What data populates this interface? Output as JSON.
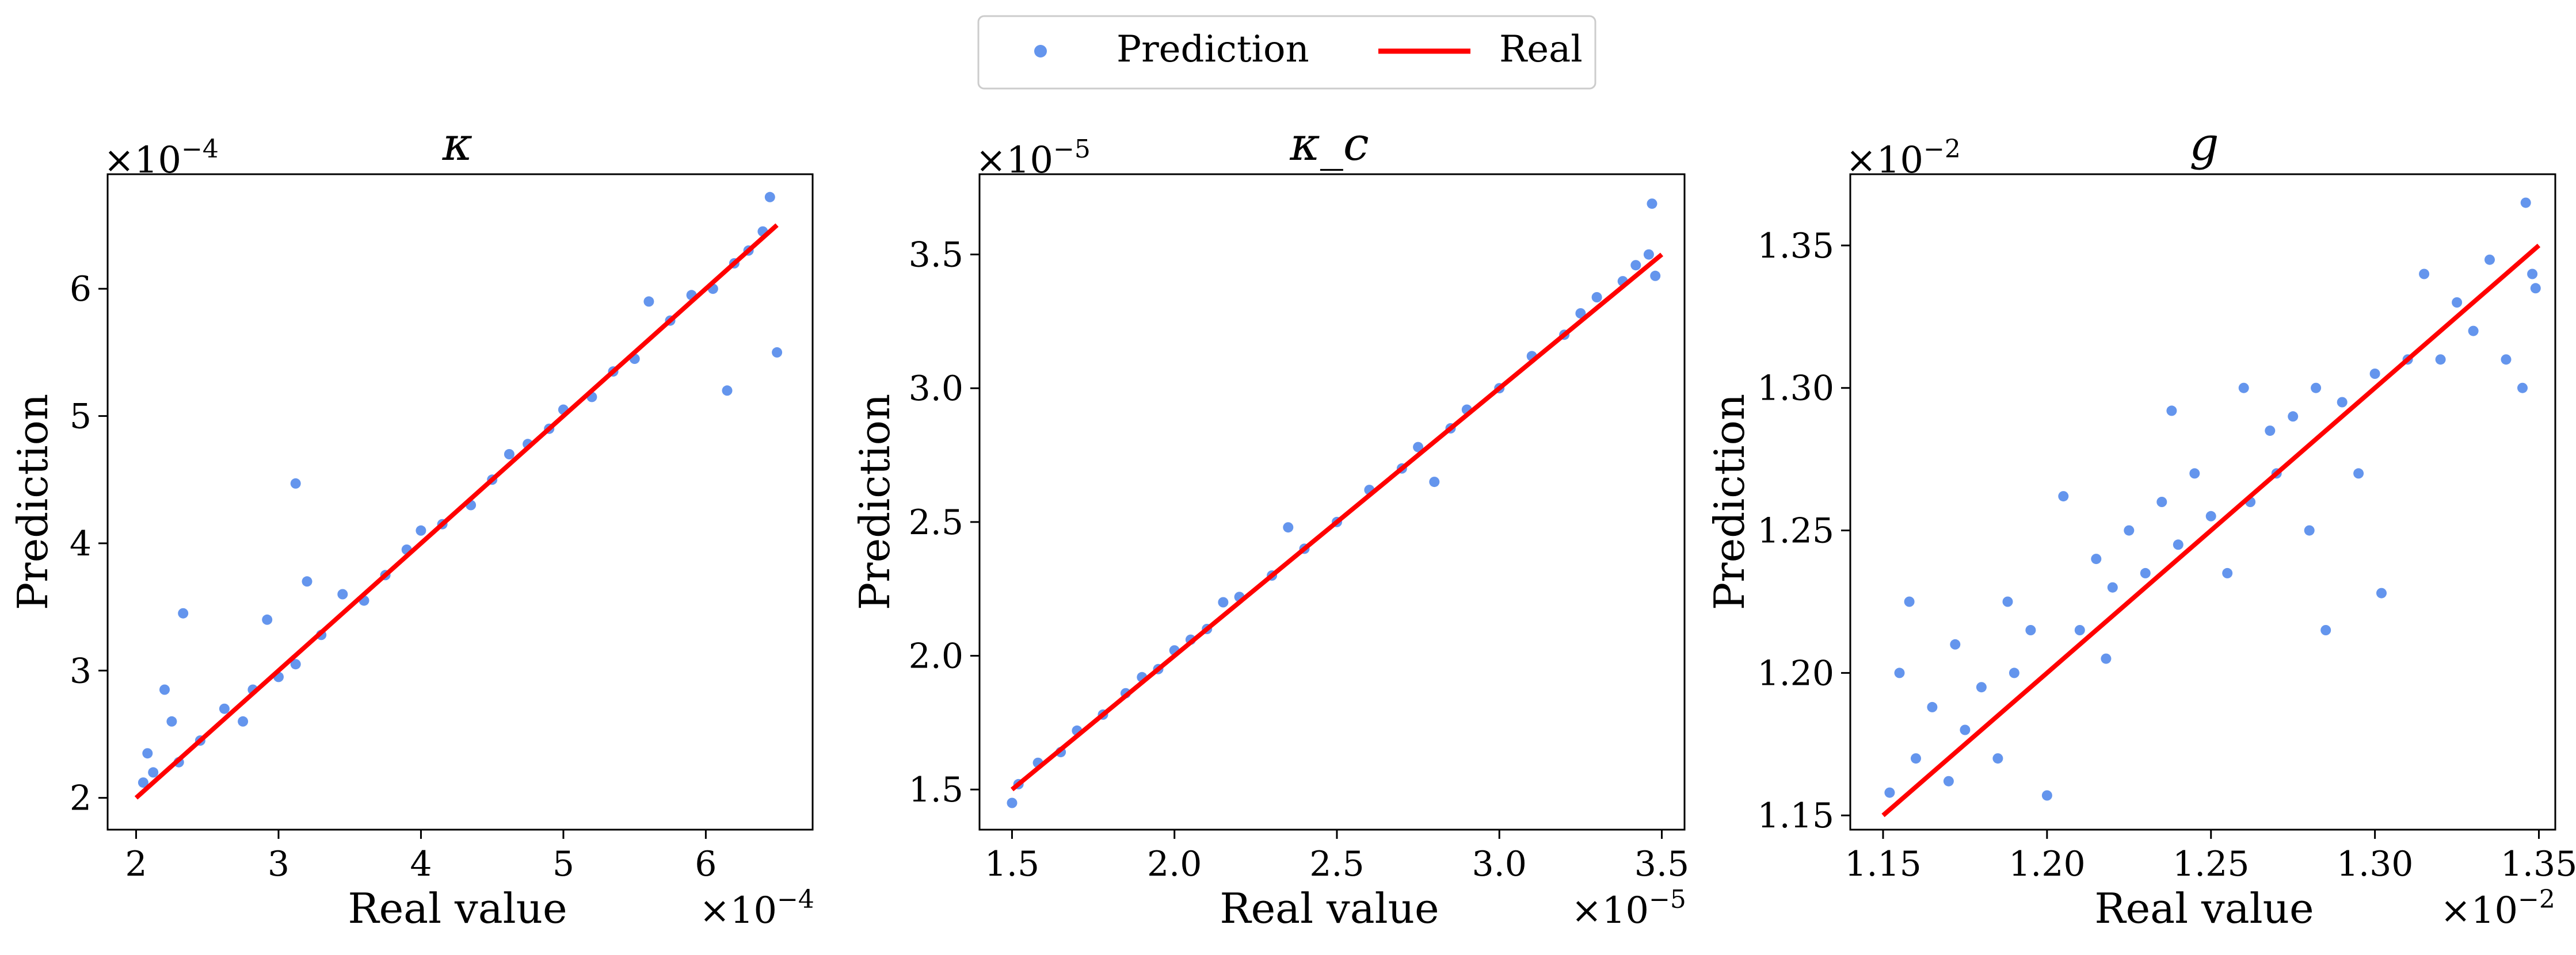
{
  "legend": {
    "placement": "top-center",
    "entries": [
      {
        "label": "Prediction",
        "marker": "dot",
        "color": "#6495ED"
      },
      {
        "label": "Real",
        "marker": "line",
        "color": "#FF0000"
      }
    ]
  },
  "colors": {
    "prediction": "#6495ED",
    "real": "#FF0000",
    "axes": "#000000",
    "background": "#FFFFFF"
  },
  "chart_data": [
    {
      "type": "scatter",
      "title": "κ",
      "xlabel": "Real value",
      "ylabel": "Prediction",
      "x_multiplier_label": "×10",
      "x_multiplier_exp": "−4",
      "y_multiplier_label": "×10",
      "y_multiplier_exp": "−4",
      "xlim": [
        1.8,
        6.75
      ],
      "ylim": [
        1.75,
        6.9
      ],
      "xticks": [
        2,
        3,
        4,
        5,
        6
      ],
      "xtick_labels": [
        "2",
        "3",
        "4",
        "5",
        "6"
      ],
      "yticks": [
        2,
        3,
        4,
        5,
        6
      ],
      "ytick_labels": [
        "2",
        "3",
        "4",
        "5",
        "6"
      ],
      "grid": false,
      "real_line": {
        "x": [
          2.0,
          6.5
        ],
        "y": [
          2.0,
          6.5
        ]
      },
      "series": [
        {
          "name": "Prediction",
          "points": [
            [
              2.05,
              2.12
            ],
            [
              2.08,
              2.35
            ],
            [
              2.12,
              2.2
            ],
            [
              2.2,
              2.85
            ],
            [
              2.25,
              2.6
            ],
            [
              2.33,
              3.45
            ],
            [
              2.3,
              2.28
            ],
            [
              2.45,
              2.45
            ],
            [
              2.62,
              2.7
            ],
            [
              2.75,
              2.6
            ],
            [
              2.82,
              2.85
            ],
            [
              2.92,
              3.4
            ],
            [
              3.0,
              2.95
            ],
            [
              3.12,
              4.47
            ],
            [
              3.12,
              3.05
            ],
            [
              3.2,
              3.7
            ],
            [
              3.3,
              3.28
            ],
            [
              3.45,
              3.6
            ],
            [
              3.6,
              3.55
            ],
            [
              3.75,
              3.75
            ],
            [
              3.9,
              3.95
            ],
            [
              4.0,
              4.1
            ],
            [
              4.15,
              4.15
            ],
            [
              4.35,
              4.3
            ],
            [
              4.5,
              4.5
            ],
            [
              4.62,
              4.7
            ],
            [
              4.75,
              4.78
            ],
            [
              4.9,
              4.9
            ],
            [
              5.0,
              5.05
            ],
            [
              5.2,
              5.15
            ],
            [
              5.35,
              5.35
            ],
            [
              5.5,
              5.45
            ],
            [
              5.6,
              5.9
            ],
            [
              5.75,
              5.75
            ],
            [
              5.9,
              5.95
            ],
            [
              6.05,
              6.0
            ],
            [
              6.15,
              5.2
            ],
            [
              6.2,
              6.2
            ],
            [
              6.3,
              6.3
            ],
            [
              6.4,
              6.45
            ],
            [
              6.45,
              6.72
            ],
            [
              6.5,
              5.5
            ]
          ]
        }
      ]
    },
    {
      "type": "scatter",
      "title": "κ_c",
      "xlabel": "Real value",
      "ylabel": "Prediction",
      "x_multiplier_label": "×10",
      "x_multiplier_exp": "−5",
      "y_multiplier_label": "×10",
      "y_multiplier_exp": "−5",
      "xlim": [
        1.4,
        3.57
      ],
      "ylim": [
        1.35,
        3.8
      ],
      "xticks": [
        1.5,
        2.0,
        2.5,
        3.0,
        3.5
      ],
      "xtick_labels": [
        "1.5",
        "2.0",
        "2.5",
        "3.0",
        "3.5"
      ],
      "yticks": [
        1.5,
        2.0,
        2.5,
        3.0,
        3.5
      ],
      "ytick_labels": [
        "1.5",
        "2.0",
        "2.5",
        "3.0",
        "3.5"
      ],
      "grid": false,
      "real_line": {
        "x": [
          1.5,
          3.5
        ],
        "y": [
          1.5,
          3.5
        ]
      },
      "series": [
        {
          "name": "Prediction",
          "points": [
            [
              1.5,
              1.45
            ],
            [
              1.52,
              1.52
            ],
            [
              1.58,
              1.6
            ],
            [
              1.65,
              1.64
            ],
            [
              1.7,
              1.72
            ],
            [
              1.78,
              1.78
            ],
            [
              1.85,
              1.86
            ],
            [
              1.9,
              1.92
            ],
            [
              1.95,
              1.95
            ],
            [
              2.0,
              2.02
            ],
            [
              2.05,
              2.06
            ],
            [
              2.1,
              2.1
            ],
            [
              2.15,
              2.2
            ],
            [
              2.2,
              2.22
            ],
            [
              2.3,
              2.3
            ],
            [
              2.35,
              2.48
            ],
            [
              2.4,
              2.4
            ],
            [
              2.5,
              2.5
            ],
            [
              2.6,
              2.62
            ],
            [
              2.7,
              2.7
            ],
            [
              2.75,
              2.78
            ],
            [
              2.8,
              2.65
            ],
            [
              2.85,
              2.85
            ],
            [
              2.9,
              2.92
            ],
            [
              3.0,
              3.0
            ],
            [
              3.1,
              3.12
            ],
            [
              3.2,
              3.2
            ],
            [
              3.25,
              3.28
            ],
            [
              3.3,
              3.34
            ],
            [
              3.38,
              3.4
            ],
            [
              3.42,
              3.46
            ],
            [
              3.46,
              3.5
            ],
            [
              3.47,
              3.69
            ],
            [
              3.48,
              3.42
            ]
          ]
        }
      ]
    },
    {
      "type": "scatter",
      "title": "g",
      "xlabel": "Real value",
      "ylabel": "Prediction",
      "x_multiplier_label": "×10",
      "x_multiplier_exp": "−2",
      "y_multiplier_label": "×10",
      "y_multiplier_exp": "−2",
      "xlim": [
        1.14,
        1.355
      ],
      "ylim": [
        1.145,
        1.375
      ],
      "xticks": [
        1.15,
        1.2,
        1.25,
        1.3,
        1.35
      ],
      "xtick_labels": [
        "1.15",
        "1.20",
        "1.25",
        "1.30",
        "1.35"
      ],
      "yticks": [
        1.15,
        1.2,
        1.25,
        1.3,
        1.35
      ],
      "ytick_labels": [
        "1.15",
        "1.20",
        "1.25",
        "1.30",
        "1.35"
      ],
      "grid": false,
      "real_line": {
        "x": [
          1.15,
          1.35
        ],
        "y": [
          1.15,
          1.35
        ]
      },
      "series": [
        {
          "name": "Prediction",
          "points": [
            [
              1.152,
              1.158
            ],
            [
              1.155,
              1.2
            ],
            [
              1.158,
              1.225
            ],
            [
              1.16,
              1.17
            ],
            [
              1.165,
              1.188
            ],
            [
              1.17,
              1.162
            ],
            [
              1.172,
              1.21
            ],
            [
              1.175,
              1.18
            ],
            [
              1.18,
              1.195
            ],
            [
              1.185,
              1.17
            ],
            [
              1.188,
              1.225
            ],
            [
              1.19,
              1.2
            ],
            [
              1.195,
              1.215
            ],
            [
              1.2,
              1.157
            ],
            [
              1.205,
              1.262
            ],
            [
              1.21,
              1.215
            ],
            [
              1.215,
              1.24
            ],
            [
              1.218,
              1.205
            ],
            [
              1.22,
              1.23
            ],
            [
              1.225,
              1.25
            ],
            [
              1.23,
              1.235
            ],
            [
              1.235,
              1.26
            ],
            [
              1.238,
              1.292
            ],
            [
              1.24,
              1.245
            ],
            [
              1.245,
              1.27
            ],
            [
              1.25,
              1.255
            ],
            [
              1.255,
              1.235
            ],
            [
              1.26,
              1.3
            ],
            [
              1.262,
              1.26
            ],
            [
              1.268,
              1.285
            ],
            [
              1.27,
              1.27
            ],
            [
              1.275,
              1.29
            ],
            [
              1.28,
              1.25
            ],
            [
              1.282,
              1.3
            ],
            [
              1.285,
              1.215
            ],
            [
              1.29,
              1.295
            ],
            [
              1.295,
              1.27
            ],
            [
              1.3,
              1.305
            ],
            [
              1.302,
              1.228
            ],
            [
              1.31,
              1.31
            ],
            [
              1.315,
              1.34
            ],
            [
              1.32,
              1.31
            ],
            [
              1.325,
              1.33
            ],
            [
              1.33,
              1.32
            ],
            [
              1.335,
              1.345
            ],
            [
              1.34,
              1.31
            ],
            [
              1.345,
              1.3
            ],
            [
              1.346,
              1.365
            ],
            [
              1.348,
              1.34
            ],
            [
              1.349,
              1.335
            ]
          ]
        }
      ]
    }
  ]
}
